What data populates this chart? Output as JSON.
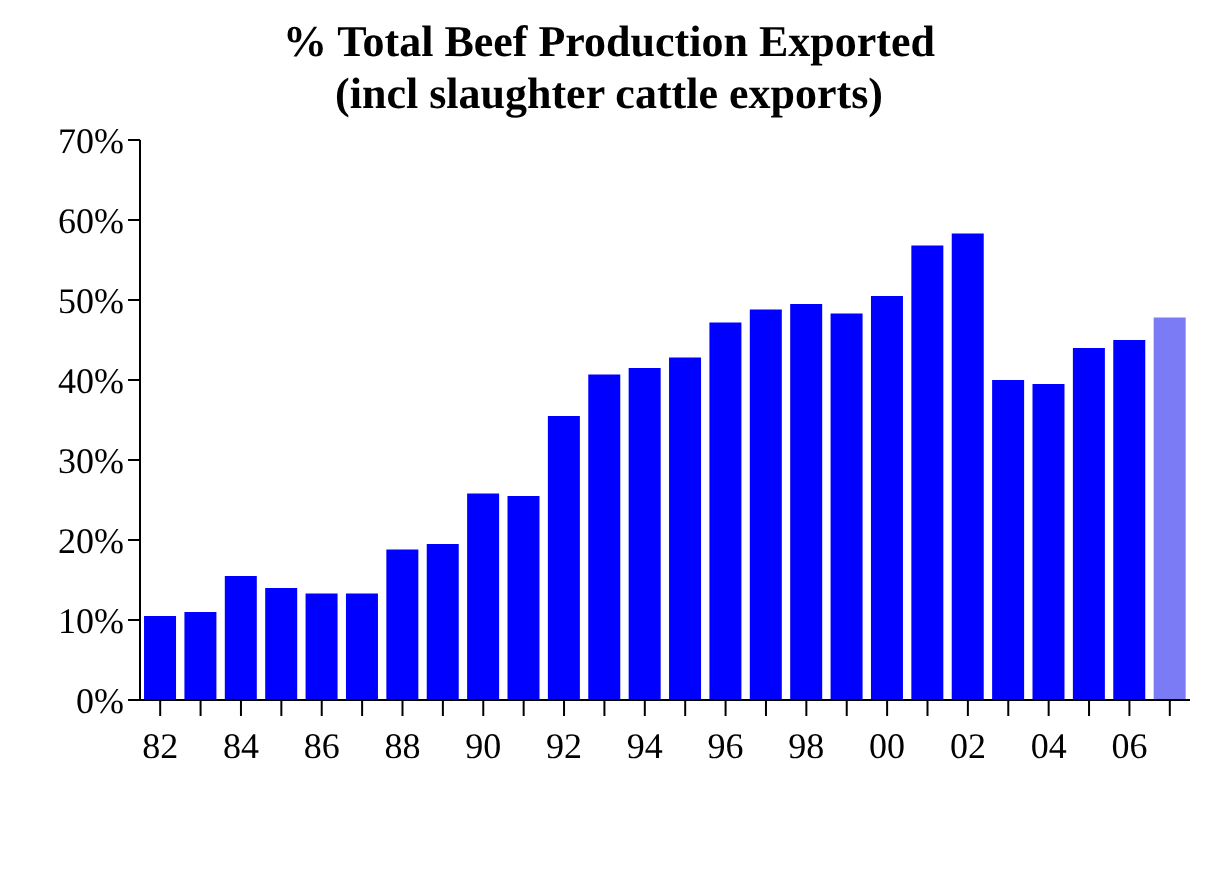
{
  "chart_data": {
    "type": "bar",
    "title": "% Total Beef Production Exported",
    "subtitle": "(incl slaughter cattle exports)",
    "categories": [
      "82",
      null,
      "84",
      null,
      "86",
      null,
      "88",
      null,
      "90",
      null,
      "92",
      null,
      "94",
      null,
      "96",
      null,
      "98",
      null,
      "00",
      null,
      "02",
      null,
      "04",
      null,
      "06",
      null
    ],
    "values": [
      10.5,
      11,
      15.5,
      14,
      13.3,
      13.3,
      18.8,
      19.5,
      25.8,
      25.5,
      35.5,
      40.7,
      41.5,
      42.8,
      47.2,
      48.8,
      49.5,
      48.3,
      50.5,
      56.8,
      58.3,
      40,
      39.5,
      44,
      45,
      47.8
    ],
    "colors": [
      "#0000ff",
      "#0000ff",
      "#0000ff",
      "#0000ff",
      "#0000ff",
      "#0000ff",
      "#0000ff",
      "#0000ff",
      "#0000ff",
      "#0000ff",
      "#0000ff",
      "#0000ff",
      "#0000ff",
      "#0000ff",
      "#0000ff",
      "#0000ff",
      "#0000ff",
      "#0000ff",
      "#0000ff",
      "#0000ff",
      "#0000ff",
      "#0000ff",
      "#0000ff",
      "#0000ff",
      "#0000ff",
      "#7b7bf5"
    ],
    "ylim": [
      0,
      70
    ],
    "yticks": [
      {
        "value": 0,
        "label": "0%"
      },
      {
        "value": 10,
        "label": "10%"
      },
      {
        "value": 20,
        "label": "20%"
      },
      {
        "value": 30,
        "label": "30%"
      },
      {
        "value": 40,
        "label": "40%"
      },
      {
        "value": 50,
        "label": "50%"
      },
      {
        "value": 60,
        "label": "60%"
      },
      {
        "value": 70,
        "label": "70%"
      }
    ],
    "grid": false,
    "legend": false
  }
}
